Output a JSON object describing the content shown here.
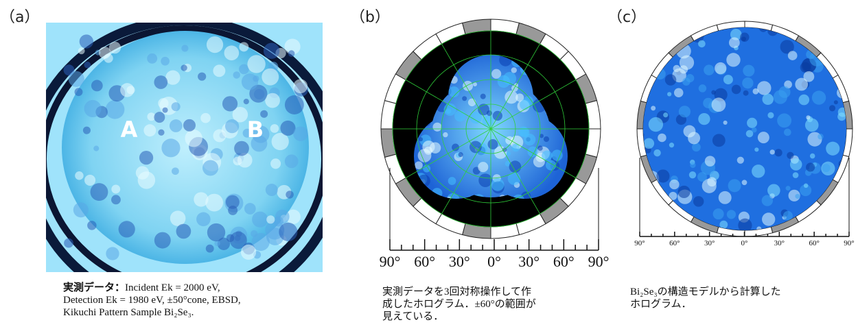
{
  "panels": [
    {
      "label": "（a）",
      "image_labels": [
        "A",
        "B"
      ],
      "caption": {
        "lead": "実測データ：",
        "lines": [
          "Incident Ek = 2000 eV,",
          "Detection Ek = 1980 eV, ±50°cone, EBSD,",
          "Kikuchi Pattern Sample Bi₂Se₃."
        ]
      }
    },
    {
      "label": "（b）",
      "scale_labels": [
        "90°",
        "60°",
        "30°",
        "0°",
        "30°",
        "60°",
        "90°"
      ],
      "caption": {
        "lines": [
          "実測データを3回対称操作して作",
          "成したホログラム．±60°の範囲が",
          "見えている．"
        ]
      }
    },
    {
      "label": "（c）",
      "scale_labels": [
        "90°",
        "60°",
        "30°",
        "0°",
        "30°",
        "60°",
        "90°"
      ],
      "caption": {
        "lines": [
          "Bi₂Se₃の構造モデルから計算した",
          "ホログラム．"
        ]
      }
    }
  ]
}
